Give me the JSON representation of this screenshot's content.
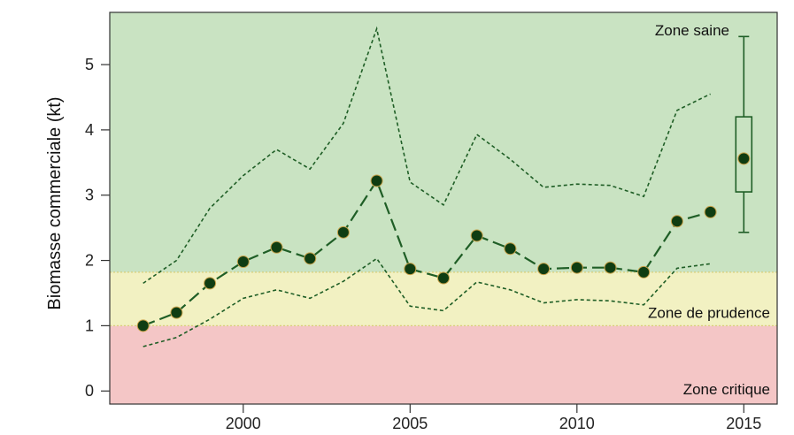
{
  "chart_data": {
    "type": "line",
    "title": "",
    "xlabel": "",
    "ylabel": "Biomasse commerciale (kt)",
    "xlim": [
      1996,
      2016
    ],
    "ylim": [
      -0.2,
      5.8
    ],
    "x_ticks": [
      2000,
      2005,
      2010,
      2015
    ],
    "y_ticks": [
      0,
      1,
      2,
      3,
      4,
      5
    ],
    "x_tick_labels": [
      "2000",
      "2005",
      "2010",
      "2015"
    ],
    "y_tick_labels": [
      "0",
      "1",
      "2",
      "3",
      "4",
      "5"
    ],
    "zones": [
      {
        "label": "Zone critique",
        "from": -0.2,
        "to": 1.0,
        "color": "#f4c6c6"
      },
      {
        "label": "Zone de prudence",
        "from": 1.0,
        "to": 1.82,
        "color": "#f2f1c2"
      },
      {
        "label": "Zone saine",
        "from": 1.82,
        "to": 5.8,
        "color": "#c9e3c2"
      }
    ],
    "x": [
      1997,
      1998,
      1999,
      2000,
      2001,
      2002,
      2003,
      2004,
      2005,
      2006,
      2007,
      2008,
      2009,
      2010,
      2011,
      2012,
      2013,
      2014
    ],
    "series": [
      {
        "role": "estimate",
        "style": "dashed-with-points",
        "values": [
          1.0,
          1.2,
          1.65,
          1.98,
          2.2,
          2.03,
          2.43,
          3.22,
          1.87,
          1.73,
          2.38,
          2.18,
          1.87,
          1.89,
          1.89,
          1.82,
          2.6,
          2.74
        ]
      },
      {
        "role": "upper",
        "style": "dotted",
        "values": [
          1.65,
          2.0,
          2.8,
          3.3,
          3.7,
          3.4,
          4.1,
          5.55,
          3.2,
          2.85,
          3.93,
          3.55,
          3.12,
          3.17,
          3.15,
          2.98,
          4.3,
          4.55
        ]
      },
      {
        "role": "lower",
        "style": "dotted",
        "values": [
          0.68,
          0.82,
          1.1,
          1.42,
          1.55,
          1.42,
          1.68,
          2.03,
          1.3,
          1.23,
          1.67,
          1.55,
          1.35,
          1.4,
          1.38,
          1.32,
          1.88,
          1.95
        ]
      }
    ],
    "boxplot": {
      "x": 2015,
      "min": 2.43,
      "q1": 3.05,
      "median": 3.56,
      "q3": 4.2,
      "max": 5.43
    },
    "colors": {
      "line": "#1f5e26",
      "point": "#0f3d12",
      "frame": "#333333"
    },
    "grid": false,
    "legend": "none"
  }
}
